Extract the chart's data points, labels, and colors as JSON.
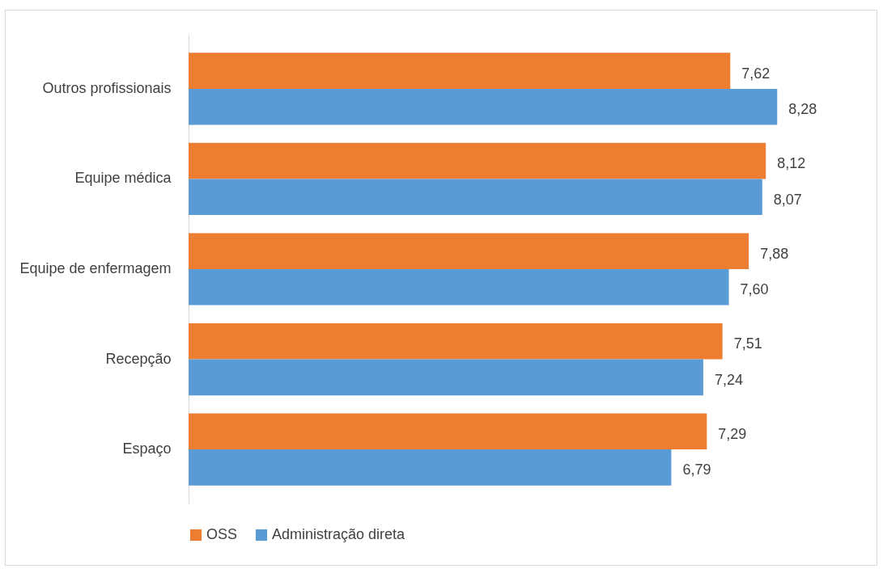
{
  "chart_data": {
    "type": "bar",
    "orientation": "horizontal",
    "categories": [
      "Outros profissionais",
      "Equipe médica",
      "Equipe de enfermagem",
      "Recepção",
      "Espaço"
    ],
    "series": [
      {
        "name": "OSS",
        "color": "#ed7d31",
        "values": [
          7.62,
          8.12,
          7.88,
          7.51,
          7.29
        ],
        "value_labels": [
          "7,62",
          "8,12",
          "7,88",
          "7,51",
          "7,29"
        ]
      },
      {
        "name": "Administração direta",
        "color": "#5b9bd5",
        "values": [
          8.28,
          8.07,
          7.6,
          7.24,
          6.79
        ],
        "value_labels": [
          "8,28",
          "8,07",
          "7,60",
          "7,24",
          "6,79"
        ]
      }
    ],
    "legend": "bottom",
    "grid": false
  }
}
